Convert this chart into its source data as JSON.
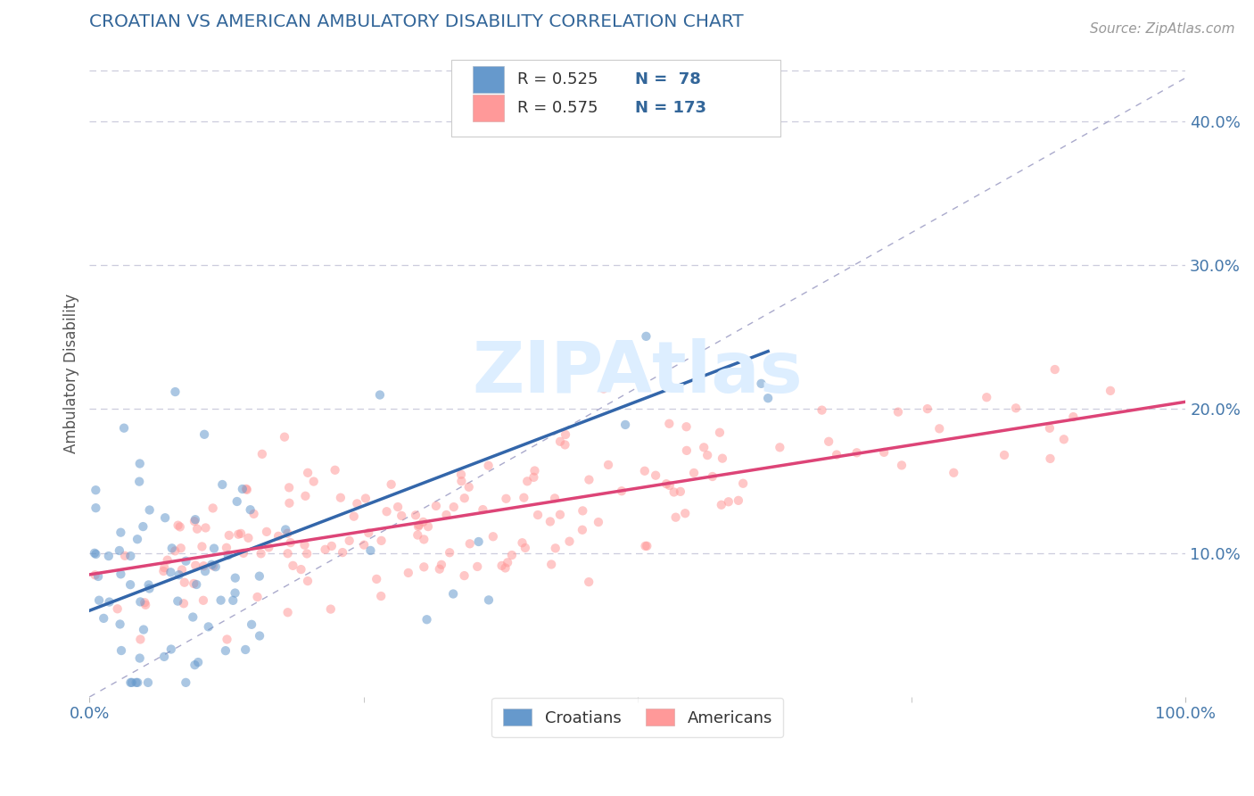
{
  "title": "CROATIAN VS AMERICAN AMBULATORY DISABILITY CORRELATION CHART",
  "source_text": "Source: ZipAtlas.com",
  "ylabel": "Ambulatory Disability",
  "xmin": 0.0,
  "xmax": 1.0,
  "ymin": 0.0,
  "ymax": 0.45,
  "ytick_labels": [
    "10.0%",
    "20.0%",
    "30.0%",
    "40.0%"
  ],
  "ytick_values": [
    0.1,
    0.2,
    0.3,
    0.4
  ],
  "xtick_labels": [
    "0.0%",
    "100.0%"
  ],
  "xtick_values": [
    0.0,
    1.0
  ],
  "croatian_color": "#6699CC",
  "croatian_edge_color": "#5588BB",
  "american_color": "#FF9999",
  "american_edge_color": "#EE8888",
  "croatian_line_color": "#3366AA",
  "american_line_color": "#DD4477",
  "dashed_line_color": "#AAAACC",
  "legend_r_croatian": "R = 0.525",
  "legend_n_croatian": "N =  78",
  "legend_r_american": "R = 0.575",
  "legend_n_american": "N = 173",
  "legend_label_croatian": "Croatians",
  "legend_label_american": "Americans",
  "title_color": "#336699",
  "axis_label_color": "#555555",
  "tick_label_color": "#4477AA",
  "legend_text_color": "#336699",
  "legend_r_color": "#333333",
  "background_color": "#FFFFFF",
  "grid_color": "#CCCCDD",
  "watermark_color": "#DDEEFF"
}
